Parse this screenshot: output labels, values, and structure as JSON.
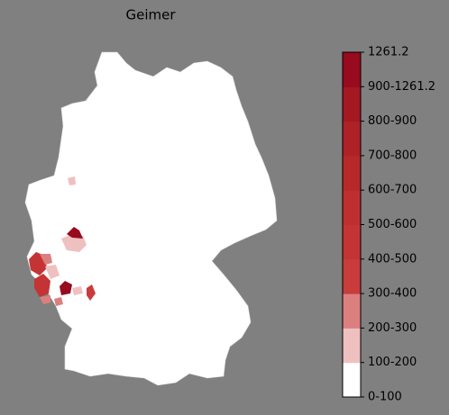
{
  "title": "Geimer",
  "colorbar": {
    "labels": [
      "0-100",
      "100-200",
      "200-300",
      "300-400",
      "400-500",
      "500-600",
      "600-700",
      "700-800",
      "800-900",
      "900-1261.2",
      "1261.2"
    ],
    "colors": [
      "#ffffff",
      "#efc0c0",
      "#dc7f7f",
      "#c83c3c",
      "#c43434",
      "#bf2f2f",
      "#b72929",
      "#ae2127",
      "#a41822",
      "#980a1e"
    ]
  }
}
